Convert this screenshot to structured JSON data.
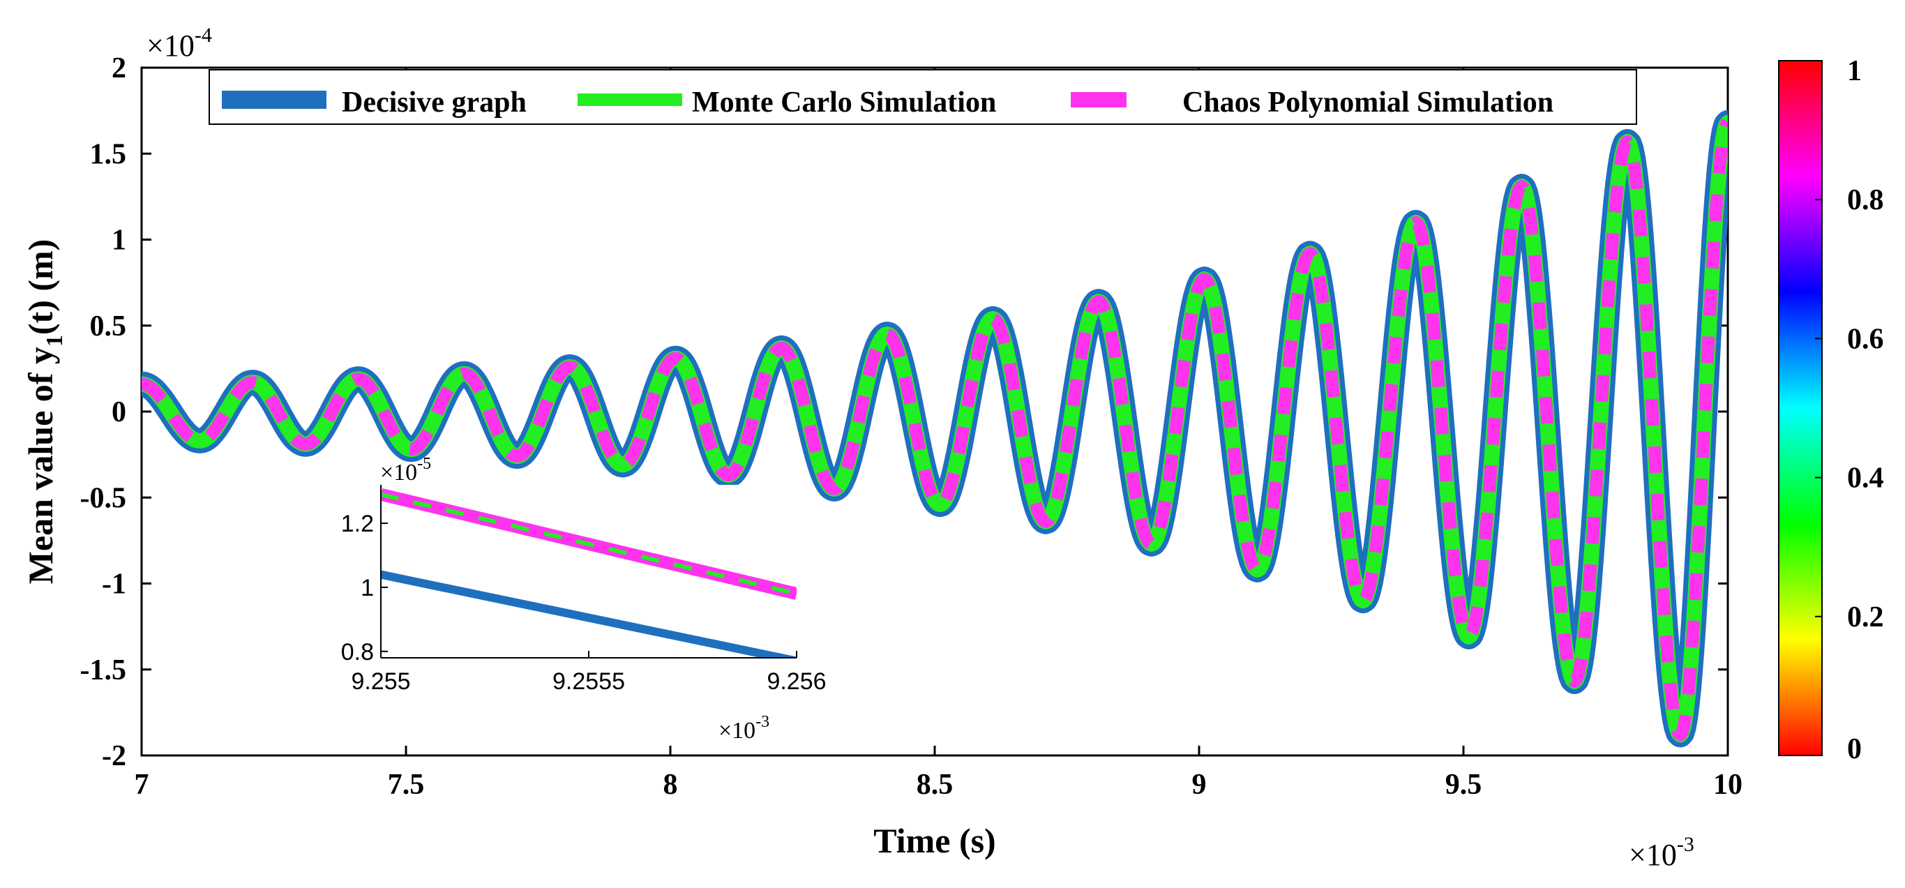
{
  "chart_data": {
    "type": "line",
    "title": "",
    "xlabel": "Time (s)",
    "ylabel": "Mean value of y1(t) (m)",
    "ylabel_parts": {
      "before": "Mean value of ",
      "symbol": "y",
      "subscript": "1",
      "after": "(t) (m)"
    },
    "x_multiplier": {
      "base": "×10",
      "exp": "-3"
    },
    "y_multiplier": {
      "base": "×10",
      "exp": "-4"
    },
    "xlim": [
      7,
      10
    ],
    "ylim": [
      -2,
      2
    ],
    "x_ticks": [
      "7",
      "7.5",
      "8",
      "8.5",
      "9",
      "9.5",
      "10"
    ],
    "x_tick_values": [
      7,
      7.5,
      8,
      8.5,
      9,
      9.5,
      10
    ],
    "y_ticks": [
      "2",
      "1.5",
      "1",
      "0.5",
      "0",
      "-0.5",
      "-1",
      "-1.5",
      "-2"
    ],
    "y_tick_values": [
      2,
      1.5,
      1,
      0.5,
      0,
      -0.5,
      -1,
      -1.5,
      -2
    ],
    "grid": false,
    "legend_position": "top",
    "series": [
      {
        "name": "Decisive graph",
        "color": "#1f6fbf",
        "style": "solid-thick",
        "oscillation": {
          "period": 0.2,
          "peaks": [
            [
              7.21,
              0.17
            ],
            [
              7.41,
              0.19
            ],
            [
              7.61,
              0.22
            ],
            [
              7.81,
              0.26
            ],
            [
              8.01,
              0.31
            ],
            [
              8.21,
              0.37
            ],
            [
              8.41,
              0.45
            ],
            [
              8.61,
              0.54
            ],
            [
              8.81,
              0.64
            ],
            [
              9.01,
              0.77
            ],
            [
              9.21,
              0.92
            ],
            [
              9.41,
              1.1
            ],
            [
              9.61,
              1.31
            ],
            [
              9.81,
              1.57
            ]
          ],
          "troughs": [
            [
              7.11,
              -0.17
            ],
            [
              7.31,
              -0.19
            ],
            [
              7.51,
              -0.22
            ],
            [
              7.71,
              -0.26
            ],
            [
              7.91,
              -0.31
            ],
            [
              8.11,
              -0.37
            ],
            [
              8.31,
              -0.45
            ],
            [
              8.51,
              -0.54
            ],
            [
              8.71,
              -0.64
            ],
            [
              8.91,
              -0.77
            ],
            [
              9.11,
              -0.92
            ],
            [
              9.31,
              -1.1
            ],
            [
              9.51,
              -1.31
            ],
            [
              9.71,
              -1.57
            ],
            [
              9.91,
              -1.88
            ]
          ],
          "start": [
            7.0,
            0.16
          ],
          "end": [
            10.0,
            1.68
          ]
        }
      },
      {
        "name": "Monte Carlo Simulation",
        "color": "#22ee22",
        "style": "solid",
        "same_as": "Decisive graph"
      },
      {
        "name": "Chaos Polynomial Simulation",
        "color": "#ff33ee",
        "style": "dashed",
        "same_as": "Decisive graph"
      }
    ],
    "inset": {
      "xlim": [
        9.255,
        9.256
      ],
      "ylim": [
        0.78,
        1.32
      ],
      "x_ticks": [
        "9.255",
        "9.2555",
        "9.256"
      ],
      "x_tick_values": [
        9.255,
        9.2555,
        9.256
      ],
      "y_ticks": [
        "1.2",
        "1",
        "0.8"
      ],
      "y_tick_values": [
        1.2,
        1.0,
        0.8
      ],
      "x_multiplier": {
        "base": "×10",
        "exp": "-3"
      },
      "y_multiplier": {
        "base": "×10",
        "exp": "-5"
      },
      "series": [
        {
          "name": "Decisive graph",
          "x": [
            9.255,
            9.256
          ],
          "y": [
            1.04,
            0.77
          ]
        },
        {
          "name": "Monte Carlo Simulation",
          "x": [
            9.255,
            9.256
          ],
          "y": [
            1.29,
            0.98
          ]
        },
        {
          "name": "Chaos Polynomial Simulation",
          "x": [
            9.255,
            9.256
          ],
          "y": [
            1.29,
            0.98
          ]
        }
      ]
    },
    "colorbar": {
      "colormap": "hsv",
      "range": [
        0,
        1
      ],
      "ticks": [
        "1",
        "0.8",
        "0.6",
        "0.4",
        "0.2",
        "0"
      ],
      "tick_values": [
        1,
        0.8,
        0.6,
        0.4,
        0.2,
        0
      ]
    }
  }
}
